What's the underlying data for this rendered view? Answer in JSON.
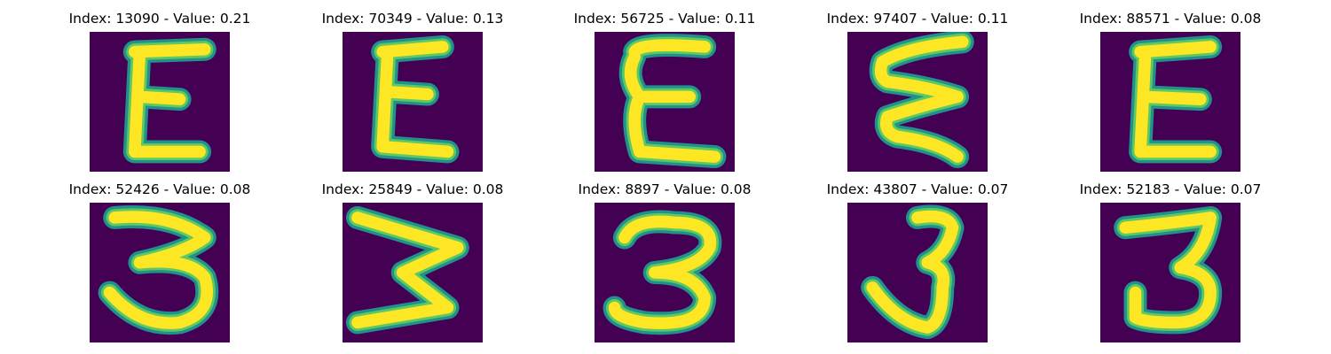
{
  "colors": {
    "background": "#440154",
    "stroke_edge": "#21918c",
    "stroke_mid": "#5ec962",
    "stroke_core": "#fde725"
  },
  "panels": [
    {
      "title": "Index: 13090 - Value: 0.21",
      "glyph": "E"
    },
    {
      "title": "Index: 70349 - Value: 0.13",
      "glyph": "E"
    },
    {
      "title": "Index: 56725 - Value: 0.11",
      "glyph": "E"
    },
    {
      "title": "Index: 97407 - Value: 0.11",
      "glyph": "E"
    },
    {
      "title": "Index: 88571 - Value: 0.08",
      "glyph": "E"
    },
    {
      "title": "Index: 52426 - Value: 0.08",
      "glyph": "3"
    },
    {
      "title": "Index: 25849 - Value: 0.08",
      "glyph": "3"
    },
    {
      "title": "Index: 8897 - Value: 0.08",
      "glyph": "3"
    },
    {
      "title": "Index: 43807 - Value: 0.07",
      "glyph": "3"
    },
    {
      "title": "Index: 52183 - Value: 0.07",
      "glyph": "3"
    }
  ]
}
